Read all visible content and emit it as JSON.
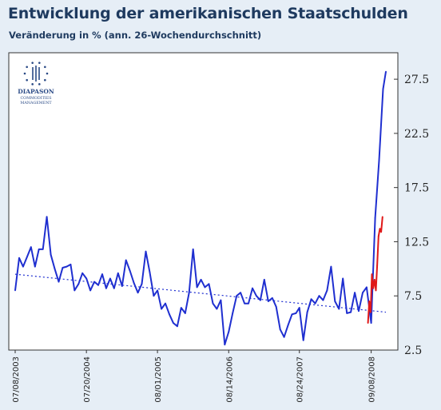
{
  "header": {
    "title": "Entwicklung der amerikanischen Staatschulden",
    "subtitle": "Veränderung in % (ann. 26-Wochendurchschnitt)"
  },
  "logo": {
    "line1": "DIAPASON",
    "line2": "COMMODITIES",
    "line3": "MANAGEMENT"
  },
  "colors": {
    "series_main": "#1f2fd0",
    "series_recent": "#e01818",
    "trend": "#1f2fd0",
    "background": "#e6eef6",
    "plot_bg": "#ffffff"
  },
  "chart_data": {
    "type": "line",
    "title": "Entwicklung der amerikanischen Staatschulden",
    "subtitle": "Veränderung in % (ann. 26-Wochendurchschnitt)",
    "xlabel": "",
    "ylabel": "",
    "ylim": [
      2.5,
      29.5
    ],
    "y_ticks": [
      "2.5",
      "7.5",
      "12.5",
      "17.5",
      "22.5",
      "27.5"
    ],
    "y_tick_values": [
      2.5,
      7.5,
      12.5,
      17.5,
      22.5,
      27.5
    ],
    "x_range": [
      "2003-07-08",
      "2008-11-25"
    ],
    "x_ticks": [
      {
        "label": "07/08/2003",
        "date": "2003-07-08"
      },
      {
        "label": "07/20/2004",
        "date": "2004-07-20"
      },
      {
        "label": "08/01/2005",
        "date": "2005-08-01"
      },
      {
        "label": "08/14/2006",
        "date": "2006-08-14"
      },
      {
        "label": "08/24/2007",
        "date": "2007-08-24"
      },
      {
        "label": "09/08/2008",
        "date": "2008-09-08"
      }
    ],
    "grid": false,
    "legend": "none",
    "series": [
      {
        "color": "#1f2fd0",
        "style": "solid",
        "x": [
          "2003-07-08",
          "2003-07-29",
          "2003-08-19",
          "2003-09-09",
          "2003-09-30",
          "2003-10-21",
          "2003-11-11",
          "2003-12-02",
          "2003-12-23",
          "2004-01-13",
          "2004-02-03",
          "2004-02-24",
          "2004-03-16",
          "2004-04-06",
          "2004-04-27",
          "2004-05-18",
          "2004-06-08",
          "2004-06-29",
          "2004-07-20",
          "2004-08-10",
          "2004-08-31",
          "2004-09-21",
          "2004-10-12",
          "2004-11-02",
          "2004-11-23",
          "2004-12-14",
          "2005-01-04",
          "2005-01-25",
          "2005-02-15",
          "2005-03-08",
          "2005-03-29",
          "2005-04-19",
          "2005-05-10",
          "2005-05-31",
          "2005-06-21",
          "2005-07-12",
          "2005-08-01",
          "2005-08-22",
          "2005-09-12",
          "2005-10-03",
          "2005-10-24",
          "2005-11-14",
          "2005-12-05",
          "2005-12-26",
          "2006-01-16",
          "2006-02-06",
          "2006-02-27",
          "2006-03-20",
          "2006-04-10",
          "2006-05-01",
          "2006-05-22",
          "2006-06-12",
          "2006-07-03",
          "2006-07-24",
          "2006-08-14",
          "2006-09-04",
          "2006-09-25",
          "2006-10-16",
          "2006-11-06",
          "2006-11-27",
          "2006-12-18",
          "2007-01-08",
          "2007-01-29",
          "2007-02-19",
          "2007-03-12",
          "2007-04-02",
          "2007-04-23",
          "2007-05-14",
          "2007-06-04",
          "2007-06-25",
          "2007-07-16",
          "2007-08-06",
          "2007-08-24",
          "2007-09-14",
          "2007-10-05",
          "2007-10-26",
          "2007-11-16",
          "2007-12-07",
          "2007-12-28",
          "2008-01-18",
          "2008-02-08",
          "2008-02-29",
          "2008-03-21",
          "2008-04-11",
          "2008-05-02",
          "2008-05-23",
          "2008-06-13",
          "2008-07-04",
          "2008-07-25",
          "2008-08-15",
          "2008-09-08",
          "2008-09-29",
          "2008-10-20",
          "2008-11-10",
          "2008-11-25"
        ],
        "values": [
          8.0,
          11.0,
          10.2,
          11.1,
          12.0,
          10.2,
          11.8,
          11.8,
          14.8,
          11.3,
          10.0,
          8.8,
          10.1,
          10.2,
          10.4,
          8.0,
          8.6,
          9.6,
          9.1,
          8.0,
          8.8,
          8.5,
          9.5,
          8.2,
          9.1,
          8.2,
          9.6,
          8.4,
          10.8,
          9.8,
          8.7,
          7.8,
          8.6,
          11.6,
          9.7,
          7.5,
          8.0,
          6.3,
          6.8,
          5.8,
          5.0,
          4.7,
          6.4,
          5.9,
          7.8,
          11.8,
          8.3,
          9.0,
          8.3,
          8.6,
          6.8,
          6.3,
          7.1,
          3.0,
          4.2,
          5.9,
          7.5,
          7.8,
          6.8,
          6.8,
          8.2,
          7.5,
          7.1,
          9.0,
          7.0,
          7.3,
          6.5,
          4.4,
          3.7,
          4.8,
          5.8,
          5.9,
          6.4,
          3.4,
          6.0,
          7.2,
          6.8,
          7.5,
          7.1,
          8.0,
          10.2,
          7.0,
          6.3,
          9.1,
          5.9,
          6.0,
          7.8,
          6.1,
          7.8,
          8.3,
          5.0,
          14.7,
          20.0,
          26.6,
          28.2
        ]
      },
      {
        "color": "#e01818",
        "style": "solid",
        "x": [
          "2008-08-22",
          "2008-08-29",
          "2008-09-05",
          "2008-09-12",
          "2008-09-19",
          "2008-09-26",
          "2008-10-03",
          "2008-10-10",
          "2008-10-17",
          "2008-10-24",
          "2008-10-31",
          "2008-11-07"
        ],
        "values": [
          5.0,
          7.0,
          6.0,
          9.5,
          8.2,
          9.0,
          8.0,
          10.3,
          13.0,
          13.7,
          13.4,
          14.8
        ]
      },
      {
        "color": "#1f2fd0",
        "style": "dotted",
        "x": [
          "2003-07-08",
          "2008-11-25"
        ],
        "values": [
          9.5,
          6.0
        ]
      }
    ]
  }
}
